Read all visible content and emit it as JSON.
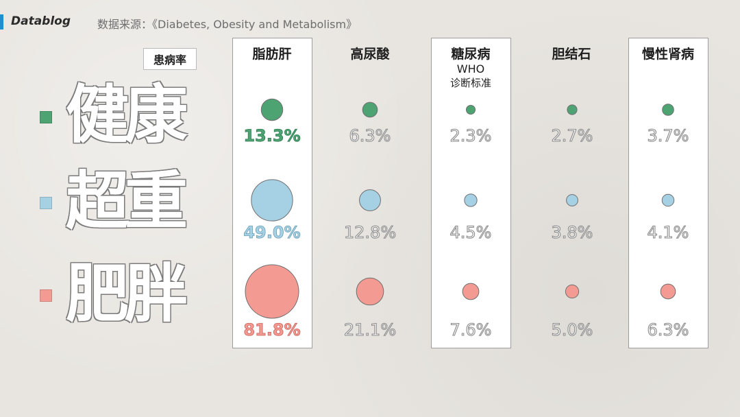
{
  "header": {
    "brand": "Datablog",
    "source": "数据来源：《Diabetes, Obesity and Metabolism》"
  },
  "legend_title": "患病率",
  "colors": {
    "healthy": "#4ea373",
    "overweight": "#a6d1e4",
    "obese": "#f39b92",
    "outline_text": "#8a8a8a",
    "brand_accent": "#1f8fd1"
  },
  "rows": [
    {
      "key": "healthy",
      "label": "健康"
    },
    {
      "key": "overweight",
      "label": "超重"
    },
    {
      "key": "obese",
      "label": "肥胖"
    }
  ],
  "columns": [
    {
      "name": "脂肪肝",
      "sub1": "",
      "sub2": "",
      "highlight": true
    },
    {
      "name": "高尿酸",
      "sub1": "",
      "sub2": "",
      "highlight": false
    },
    {
      "name": "糖尿病",
      "sub1": "WHO",
      "sub2": "诊断标准",
      "highlight": true
    },
    {
      "name": "胆结石",
      "sub1": "",
      "sub2": "",
      "highlight": false
    },
    {
      "name": "慢性肾病",
      "sub1": "",
      "sub2": "",
      "highlight": true
    }
  ],
  "chart_data": {
    "type": "table",
    "row_categories": [
      "健康",
      "超重",
      "肥胖"
    ],
    "column_categories": [
      "脂肪肝",
      "高尿酸",
      "糖尿病 WHO 诊断标准",
      "胆结石",
      "慢性肾病"
    ],
    "values": [
      [
        13.3,
        6.3,
        2.3,
        2.7,
        3.7
      ],
      [
        49.0,
        12.8,
        4.5,
        3.8,
        4.1
      ],
      [
        81.8,
        21.1,
        7.6,
        5.0,
        6.3
      ]
    ],
    "labels": [
      [
        "13.3%",
        "6.3%",
        "2.3%",
        "2.7%",
        "3.7%"
      ],
      [
        "49.0%",
        "12.8%",
        "4.5%",
        "3.8%",
        "4.1%"
      ],
      [
        "81.8%",
        "21.1%",
        "7.6%",
        "5.0%",
        "6.3%"
      ]
    ],
    "encoding": "bubble area proportional to prevalence (%)"
  }
}
